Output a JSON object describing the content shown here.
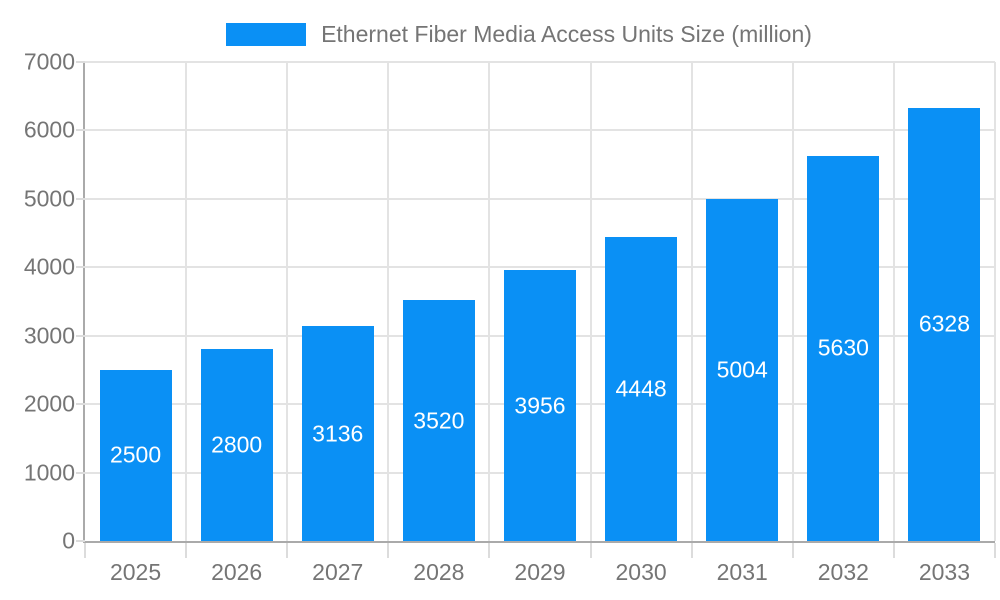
{
  "chart_data": {
    "type": "bar",
    "title": "Ethernet Fiber Media Access Units Size (million)",
    "categories": [
      "2025",
      "2026",
      "2027",
      "2028",
      "2029",
      "2030",
      "2031",
      "2032",
      "2033"
    ],
    "values": [
      2500,
      2800,
      3136,
      3520,
      3956,
      4448,
      5004,
      5630,
      6328
    ],
    "xlabel": "",
    "ylabel": "",
    "ylim": [
      0,
      7000
    ],
    "yticks": [
      0,
      1000,
      2000,
      3000,
      4000,
      5000,
      6000,
      7000
    ],
    "grid": true,
    "legend_position": "top-center",
    "colors": {
      "bar": "#0A90F5",
      "value_label": "#FFFFFF",
      "axis_text": "#757575",
      "gridline": "#E3E3E3",
      "tick": "#DCDCDC",
      "axis_line": "#AAAAAA",
      "background": "#FFFFFF"
    }
  }
}
